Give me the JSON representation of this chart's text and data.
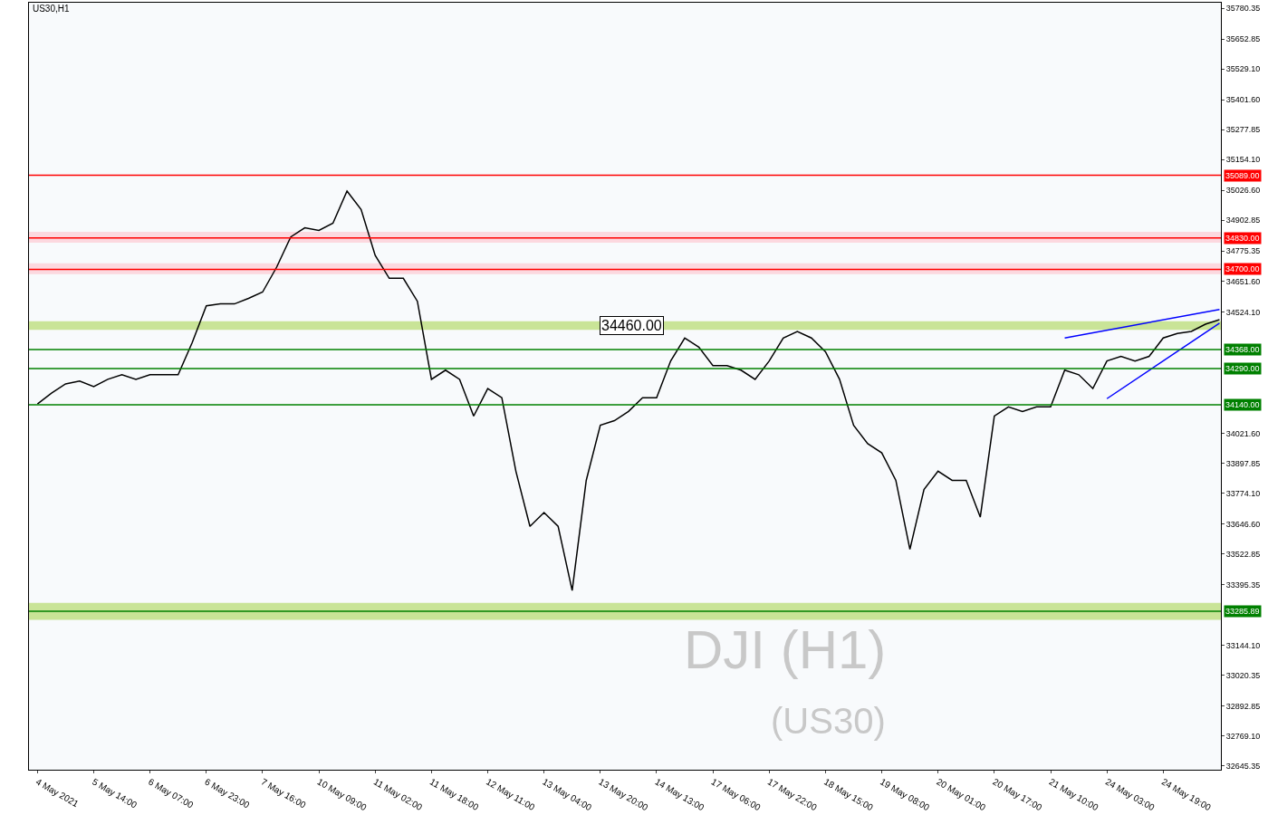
{
  "chart_data": {
    "type": "line",
    "title": "US30,H1",
    "annotations": [
      "DJI (H1)",
      "(US30)"
    ],
    "categories": [
      "4 May 2021",
      null,
      null,
      null,
      "5 May 14:00",
      null,
      null,
      null,
      "6 May 07:00",
      null,
      null,
      null,
      "6 May 23:00",
      null,
      null,
      null,
      "7 May 16:00",
      null,
      null,
      null,
      "10 May 09:00",
      null,
      null,
      null,
      "11 May 02:00",
      null,
      null,
      null,
      "11 May 18:00",
      null,
      null,
      null,
      "12 May 11:00",
      null,
      null,
      null,
      "13 May 04:00",
      null,
      null,
      null,
      "13 May 20:00",
      null,
      null,
      null,
      "14 May 13:00",
      null,
      null,
      null,
      "17 May 06:00",
      null,
      null,
      null,
      "17 May 22:00",
      null,
      null,
      null,
      "18 May 15:00",
      null,
      null,
      null,
      "19 May 08:00",
      null,
      null,
      null,
      "20 May 01:00",
      null,
      null,
      null,
      "20 May 17:00",
      null,
      null,
      null,
      "21 May 10:00",
      null,
      null,
      null,
      "24 May 03:00",
      null,
      null,
      null,
      "24 May 19:00",
      null,
      null,
      null,
      null
    ],
    "series": [
      {
        "color": "#000000",
        "values": [
          34143,
          34188,
          34226,
          34238,
          34215,
          34245,
          34264,
          34245,
          34264,
          34264,
          34264,
          34397,
          34549,
          34557,
          34557,
          34580,
          34606,
          34709,
          34834,
          34872,
          34861,
          34891,
          35024,
          34948,
          34758,
          34663,
          34663,
          34568,
          34245,
          34283,
          34245,
          34093,
          34207,
          34169,
          33865,
          33637,
          33694,
          33637,
          33371,
          33827,
          34055,
          34074,
          34112,
          34169,
          34169,
          34321,
          34416,
          34378,
          34302,
          34302,
          34283,
          34245,
          34321,
          34416,
          34443,
          34416,
          34359,
          34245,
          34055,
          33979,
          33941,
          33827,
          33542,
          33789,
          33865,
          33827,
          33827,
          33675,
          34093,
          34131,
          34112,
          34131,
          34131,
          34283,
          34264,
          34207,
          34321,
          34340,
          34321,
          34340,
          34416,
          34435,
          34443,
          34473,
          34492
        ]
      },
      {
        "color": "#0000ff",
        "values": [
          null,
          null,
          null,
          null,
          null,
          null,
          null,
          null,
          null,
          null,
          null,
          null,
          null,
          null,
          null,
          null,
          null,
          null,
          null,
          null,
          null,
          null,
          null,
          null,
          null,
          null,
          null,
          null,
          null,
          null,
          null,
          null,
          null,
          null,
          null,
          null,
          null,
          null,
          null,
          null,
          null,
          null,
          null,
          null,
          null,
          null,
          null,
          null,
          null,
          null,
          null,
          null,
          null,
          null,
          null,
          null,
          null,
          null,
          null,
          null,
          null,
          null,
          null,
          null,
          null,
          null,
          null,
          null,
          null,
          null,
          null,
          null,
          null,
          34416,
          null,
          null,
          null,
          null,
          null,
          null,
          null,
          null,
          null,
          null,
          34534
        ]
      },
      {
        "color": "#0000ff",
        "values": [
          null,
          null,
          null,
          null,
          null,
          null,
          null,
          null,
          null,
          null,
          null,
          null,
          null,
          null,
          null,
          null,
          null,
          null,
          null,
          null,
          null,
          null,
          null,
          null,
          null,
          null,
          null,
          null,
          null,
          null,
          null,
          null,
          null,
          null,
          null,
          null,
          null,
          null,
          null,
          null,
          null,
          null,
          null,
          null,
          null,
          null,
          null,
          null,
          null,
          null,
          null,
          null,
          null,
          null,
          null,
          null,
          null,
          null,
          null,
          null,
          null,
          null,
          null,
          null,
          null,
          null,
          null,
          null,
          null,
          null,
          null,
          null,
          null,
          null,
          null,
          null,
          34165,
          null,
          null,
          null,
          null,
          null,
          null,
          null,
          34477
        ]
      }
    ],
    "ylim": [
      32630,
      35803
    ],
    "yticks": [
      {
        "value": 35780.35,
        "label": "35780.35"
      },
      {
        "value": 35652.85,
        "label": "35652.85"
      },
      {
        "value": 35529.1,
        "label": "35529.10"
      },
      {
        "value": 35401.6,
        "label": "35401.60"
      },
      {
        "value": 35277.85,
        "label": "35277.85"
      },
      {
        "value": 35154.1,
        "label": "35154.10"
      },
      {
        "value": 35026.6,
        "label": "35026.60"
      },
      {
        "value": 34902.85,
        "label": "34902.85"
      },
      {
        "value": 34775.35,
        "label": "34775.35"
      },
      {
        "value": 34651.6,
        "label": "34651.60"
      },
      {
        "value": 34524.1,
        "label": "34524.10"
      },
      {
        "value": 34021.6,
        "label": "34021.60"
      },
      {
        "value": 33897.85,
        "label": "33897.85"
      },
      {
        "value": 33774.1,
        "label": "33774.10"
      },
      {
        "value": 33646.6,
        "label": "33646.60"
      },
      {
        "value": 33522.85,
        "label": "33522.85"
      },
      {
        "value": 33395.35,
        "label": "33395.35"
      },
      {
        "value": 33144.1,
        "label": "33144.10"
      },
      {
        "value": 33020.35,
        "label": "33020.35"
      },
      {
        "value": 32892.85,
        "label": "32892.85"
      },
      {
        "value": 32769.1,
        "label": "32769.10"
      },
      {
        "value": 32645.35,
        "label": "32645.35"
      }
    ],
    "ref_lines": [
      {
        "axis": "y",
        "value": 35089.0,
        "label": "35089.00",
        "color": "#ff0000"
      },
      {
        "axis": "y",
        "value": 34830.0,
        "label": "34830.00",
        "color": "#ff0000"
      },
      {
        "axis": "y",
        "value": 34700.0,
        "label": "34700.00",
        "color": "#ff0000"
      },
      {
        "axis": "y",
        "value": 34368.0,
        "label": "34368.00",
        "color": "#008000"
      },
      {
        "axis": "y",
        "value": 34290.0,
        "label": "34290.00",
        "color": "#008000"
      },
      {
        "axis": "y",
        "value": 34140.0,
        "label": "34140.00",
        "color": "#008000"
      },
      {
        "axis": "y",
        "value": 33285.89,
        "label": "33285.89",
        "color": "#008000"
      }
    ],
    "bands": [
      {
        "axis": "y",
        "from": 33250,
        "to": 33320,
        "color": "#9acd32"
      },
      {
        "axis": "y",
        "from": 34450,
        "to": 34485,
        "label": "34460.00",
        "color": "#9acd32"
      },
      {
        "axis": "y",
        "from": 34810,
        "to": 34855,
        "color": "#ffb6c1"
      },
      {
        "axis": "y",
        "from": 34680,
        "to": 34725,
        "color": "#ffb6c1"
      }
    ],
    "grid": false,
    "marker": "none",
    "line_style": "solid"
  }
}
